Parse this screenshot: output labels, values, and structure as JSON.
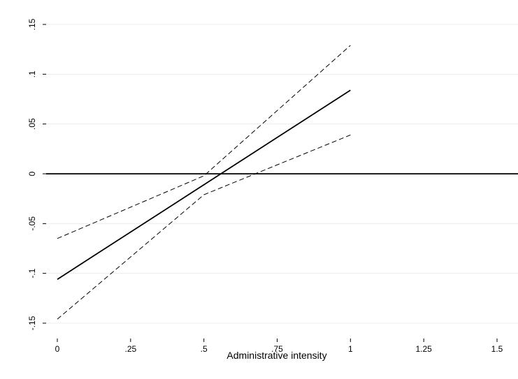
{
  "chart_data": {
    "type": "line",
    "title": "",
    "xlabel": "Administrative intensity",
    "ylabel": "",
    "xlim": [
      -0.08,
      1.53
    ],
    "ylim": [
      -0.16,
      0.16
    ],
    "x_ticks": [
      0,
      0.25,
      0.5,
      0.75,
      1,
      1.25,
      1.5
    ],
    "x_tick_labels": [
      "0",
      ".25",
      ".5",
      ".75",
      "1",
      "1.25",
      "1.5"
    ],
    "y_ticks": [
      -0.15,
      -0.1,
      -0.05,
      0,
      0.05,
      0.1,
      0.15
    ],
    "y_tick_labels": [
      "-.15",
      "-.1",
      "-.05",
      "0",
      ".05",
      ".1",
      ".15"
    ],
    "grid": true,
    "legend": "none",
    "reference_line_y": 0,
    "series": [
      {
        "style": "solid",
        "color": "#000000",
        "x": [
          0,
          1
        ],
        "y": [
          -0.106,
          0.084
        ]
      },
      {
        "style": "dashed",
        "color": "#000000",
        "x": [
          0,
          0.5,
          1
        ],
        "y": [
          -0.065,
          -0.002,
          0.129
        ]
      },
      {
        "style": "dashed",
        "color": "#000000",
        "x": [
          0,
          0.5,
          1
        ],
        "y": [
          -0.146,
          -0.021,
          0.039
        ]
      }
    ]
  }
}
